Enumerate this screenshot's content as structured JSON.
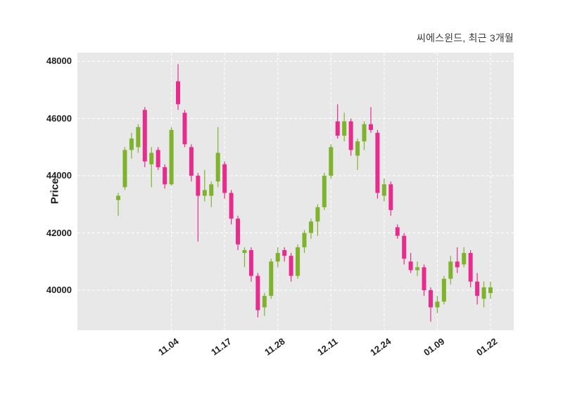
{
  "title": "씨에스윈드, 최근 3개월",
  "ylabel": "Price",
  "colors": {
    "up": "#7fb32d",
    "down": "#e82c8e",
    "plot_bg": "#e8e8e8",
    "grid": "#ffffff",
    "tick_text": "#1f1f1f",
    "title_text": "#3b3b3b"
  },
  "chart_data": {
    "type": "candlestick",
    "title": "씨에스윈드, 최근 3개월",
    "ylabel": "Price",
    "ylim": [
      38600,
      48300
    ],
    "yticks": [
      40000,
      42000,
      44000,
      46000,
      48000
    ],
    "xtick_labels": [
      "11.04",
      "11.17",
      "11.28",
      "12.11",
      "12.24",
      "01.09",
      "01.22"
    ],
    "xtick_indices": [
      8,
      16,
      24,
      32,
      40,
      48,
      56
    ],
    "grid": true,
    "candle_format": [
      "open",
      "high",
      "low",
      "close"
    ],
    "candles": [
      [
        43150,
        43400,
        42600,
        43300
      ],
      [
        43600,
        45000,
        43500,
        44900
      ],
      [
        44900,
        45500,
        44600,
        45300
      ],
      [
        45000,
        45800,
        44800,
        45700
      ],
      [
        46300,
        46400,
        44300,
        44500
      ],
      [
        44400,
        45000,
        43600,
        44800
      ],
      [
        44900,
        45000,
        44200,
        44300
      ],
      [
        44300,
        44400,
        43550,
        43700
      ],
      [
        43700,
        45700,
        43650,
        45600
      ],
      [
        47300,
        47900,
        46300,
        46500
      ],
      [
        46200,
        46300,
        45000,
        45100
      ],
      [
        45000,
        45100,
        43800,
        44000
      ],
      [
        44000,
        44100,
        41700,
        43300
      ],
      [
        43300,
        44200,
        43100,
        43500
      ],
      [
        43300,
        43800,
        42900,
        43700
      ],
      [
        43800,
        45700,
        43600,
        44800
      ],
      [
        44400,
        44500,
        43200,
        43400
      ],
      [
        43400,
        43500,
        42300,
        42500
      ],
      [
        42500,
        42600,
        41400,
        41600
      ],
      [
        41300,
        41500,
        40800,
        41400
      ],
      [
        41400,
        41500,
        40300,
        40500
      ],
      [
        40500,
        40600,
        39050,
        39300
      ],
      [
        39400,
        39900,
        39100,
        39800
      ],
      [
        39800,
        41100,
        39700,
        41000
      ],
      [
        41000,
        41500,
        40800,
        41300
      ],
      [
        41400,
        41500,
        41000,
        41200
      ],
      [
        41200,
        41300,
        40300,
        40500
      ],
      [
        40500,
        41600,
        40400,
        41500
      ],
      [
        41500,
        42100,
        41300,
        42000
      ],
      [
        42000,
        42500,
        41800,
        42400
      ],
      [
        42400,
        43000,
        41900,
        42900
      ],
      [
        42900,
        44100,
        42800,
        44000
      ],
      [
        44000,
        45100,
        43900,
        45000
      ],
      [
        45900,
        46500,
        45300,
        45400
      ],
      [
        45400,
        46200,
        45200,
        45900
      ],
      [
        45900,
        46000,
        44700,
        44900
      ],
      [
        44700,
        45300,
        44200,
        45200
      ],
      [
        45200,
        45900,
        44900,
        45800
      ],
      [
        45800,
        46400,
        45500,
        45600
      ],
      [
        45500,
        45600,
        43200,
        43400
      ],
      [
        43300,
        43900,
        43100,
        43700
      ],
      [
        43700,
        43800,
        42600,
        42800
      ],
      [
        42200,
        42300,
        41800,
        41900
      ],
      [
        41900,
        42000,
        40900,
        41100
      ],
      [
        41000,
        41300,
        40600,
        40700
      ],
      [
        40700,
        41000,
        40500,
        40800
      ],
      [
        40800,
        40900,
        39800,
        40000
      ],
      [
        40000,
        40100,
        38900,
        39400
      ],
      [
        39400,
        39800,
        39200,
        39600
      ],
      [
        39600,
        40500,
        39500,
        40400
      ],
      [
        40400,
        41200,
        40200,
        41000
      ],
      [
        41000,
        41500,
        40600,
        40800
      ],
      [
        40900,
        41500,
        40800,
        41300
      ],
      [
        41300,
        41400,
        40100,
        40300
      ],
      [
        40300,
        40600,
        39500,
        39800
      ],
      [
        39700,
        40300,
        39400,
        40100
      ],
      [
        39900,
        40300,
        39700,
        40100
      ]
    ]
  }
}
